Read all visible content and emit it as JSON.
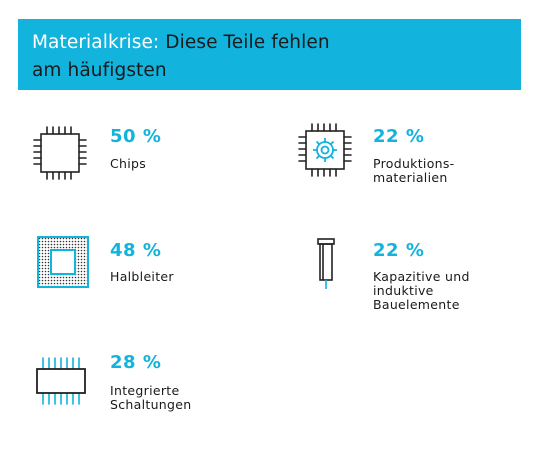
{
  "title": {
    "prefix": "Materialkrise:",
    "line1": "Diese Teile fehlen",
    "line2": "am häufigsten"
  },
  "colors": {
    "accent": "#12b3dd",
    "text": "#1a1a1a",
    "icon": "#222222"
  },
  "chart_data": {
    "type": "table",
    "unit": "%",
    "items": [
      {
        "category_lines": [
          "Chips"
        ],
        "value": 50,
        "value_label": "50 %",
        "icon": "chip-icon"
      },
      {
        "category_lines": [
          "Produktions-",
          "materialien"
        ],
        "value": 22,
        "value_label": "22 %",
        "icon": "gear-chip-icon"
      },
      {
        "category_lines": [
          "Halbleiter"
        ],
        "value": 48,
        "value_label": "48 %",
        "icon": "semiconductor-icon"
      },
      {
        "category_lines": [
          "Kapazitive und",
          "induktive",
          "Bauelemente"
        ],
        "value": 22,
        "value_label": "22 %",
        "icon": "capacitor-icon"
      },
      {
        "category_lines": [
          "Integrierte",
          "Schaltungen"
        ],
        "value": 28,
        "value_label": "28 %",
        "icon": "integrated-circuit-icon"
      }
    ]
  }
}
